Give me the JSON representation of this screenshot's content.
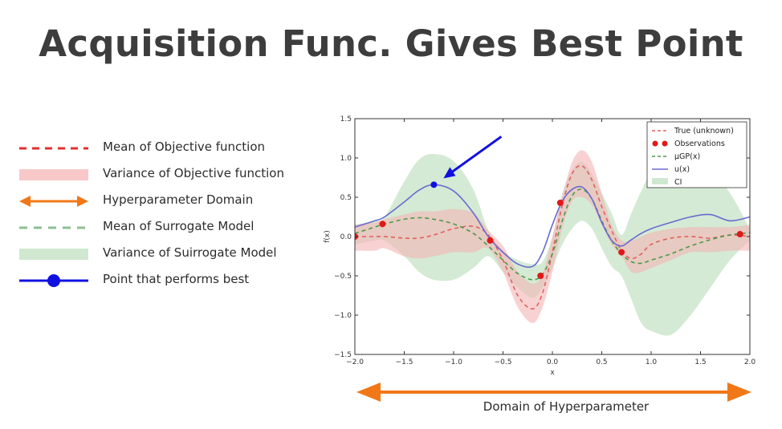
{
  "slide": {
    "title": "Acquisition Func. Gives Best Point",
    "domain_label": "Domain of Hyperparameter"
  },
  "legend_left": [
    {
      "label": "Mean of Objective function",
      "icon": "red-dashed-line",
      "color": "#e03030"
    },
    {
      "label": "Variance of Objective function",
      "icon": "pink-band",
      "color": "#f8c8c8"
    },
    {
      "label": "Hyperparameter Domain",
      "icon": "orange-double-arrow",
      "color": "#f07818"
    },
    {
      "label": "Mean of Surrogate Model",
      "icon": "green-dashed-line",
      "color": "#8cbf92"
    },
    {
      "label": "Variance of Suirrogate Model",
      "icon": "green-band",
      "color": "#cfe8cf"
    },
    {
      "label": "Point that performs best",
      "icon": "blue-line-with-dot",
      "color": "#1010e0"
    }
  ],
  "chart_data": {
    "type": "line",
    "xlabel": "x",
    "ylabel": "f(x)",
    "xlim": [
      -2.0,
      2.0
    ],
    "ylim": [
      -1.5,
      1.5
    ],
    "x_ticks": [
      "−2.0",
      "−1.5",
      "−1.0",
      "−0.5",
      "0.0",
      "0.5",
      "1.0",
      "1.5",
      "2.0"
    ],
    "y_ticks": [
      "1.5",
      "1.0",
      "0.5",
      "0.0",
      "−0.5",
      "−1.0",
      "−1.5"
    ],
    "legend": {
      "position": "top-right",
      "entries": [
        "True (unknown)",
        "Observations",
        "μGP(x)",
        "u(x)",
        "CI"
      ]
    },
    "colors": {
      "true": "#e06060",
      "obs": "#e01818",
      "mu": "#4a9a4a",
      "u": "#6a6ad0",
      "ci": "#cfe8cf",
      "true_band": "#f4b4b4",
      "best": "#1010e0"
    },
    "x": [
      -2.0,
      -1.8,
      -1.7,
      -1.5,
      -1.35,
      -1.2,
      -1.0,
      -0.8,
      -0.65,
      -0.5,
      -0.35,
      -0.2,
      -0.1,
      0.0,
      0.1,
      0.2,
      0.3,
      0.4,
      0.5,
      0.6,
      0.7,
      0.8,
      0.9,
      1.0,
      1.2,
      1.4,
      1.6,
      1.8,
      2.0
    ],
    "series": [
      {
        "name": "True (unknown)",
        "values": [
          0.0,
          0.0,
          0.0,
          -0.02,
          -0.02,
          0.02,
          0.1,
          0.13,
          0.02,
          -0.3,
          -0.75,
          -0.92,
          -0.72,
          -0.2,
          0.4,
          0.8,
          0.9,
          0.72,
          0.38,
          0.08,
          -0.18,
          -0.28,
          -0.22,
          -0.1,
          -0.02,
          0.0,
          -0.02,
          0.02,
          0.0
        ]
      },
      {
        "name": "μGP(x)",
        "values": [
          0.04,
          0.12,
          0.16,
          0.22,
          0.24,
          0.22,
          0.16,
          0.04,
          -0.12,
          -0.3,
          -0.47,
          -0.55,
          -0.48,
          -0.22,
          0.2,
          0.52,
          0.6,
          0.48,
          0.2,
          -0.05,
          -0.22,
          -0.32,
          -0.34,
          -0.3,
          -0.22,
          -0.12,
          -0.04,
          0.02,
          0.05
        ]
      },
      {
        "name": "u(x)",
        "values": [
          0.12,
          0.2,
          0.25,
          0.44,
          0.59,
          0.66,
          0.58,
          0.3,
          0.0,
          -0.2,
          -0.35,
          -0.38,
          -0.2,
          0.15,
          0.45,
          0.6,
          0.63,
          0.48,
          0.18,
          -0.05,
          -0.12,
          -0.04,
          0.04,
          0.1,
          0.18,
          0.25,
          0.28,
          0.2,
          0.25
        ]
      }
    ],
    "ci_band": {
      "upper": [
        0.15,
        0.2,
        0.25,
        0.7,
        0.98,
        1.05,
        0.96,
        0.6,
        0.08,
        -0.18,
        -0.3,
        -0.35,
        -0.32,
        0.0,
        0.55,
        0.85,
        0.95,
        0.8,
        0.55,
        0.3,
        0.02,
        0.3,
        0.58,
        0.8,
        0.95,
        0.95,
        0.85,
        0.55,
        0.1
      ],
      "lower": [
        -0.1,
        -0.05,
        -0.05,
        -0.25,
        -0.45,
        -0.55,
        -0.55,
        -0.4,
        -0.25,
        -0.45,
        -0.65,
        -0.78,
        -0.65,
        -0.4,
        -0.1,
        0.1,
        0.2,
        0.1,
        -0.15,
        -0.38,
        -0.5,
        -0.8,
        -1.1,
        -1.2,
        -1.25,
        -1.0,
        -0.65,
        -0.3,
        -0.05
      ]
    },
    "true_band": {
      "upper": [
        0.15,
        0.18,
        0.22,
        0.28,
        0.32,
        0.32,
        0.35,
        0.3,
        0.08,
        -0.12,
        -0.45,
        -0.6,
        -0.48,
        0.0,
        0.5,
        0.95,
        1.1,
        0.95,
        0.55,
        0.15,
        -0.05,
        -0.05,
        0.0,
        0.05,
        0.1,
        0.12,
        0.12,
        0.12,
        0.15
      ],
      "lower": [
        -0.18,
        -0.18,
        -0.15,
        -0.25,
        -0.28,
        -0.25,
        -0.2,
        -0.2,
        -0.15,
        -0.45,
        -0.9,
        -1.1,
        -0.9,
        -0.45,
        0.1,
        0.45,
        0.5,
        0.4,
        0.15,
        -0.1,
        -0.25,
        -0.45,
        -0.45,
        -0.4,
        -0.3,
        -0.2,
        -0.2,
        -0.18,
        -0.18
      ]
    },
    "observations": [
      {
        "x": -2.0,
        "y": 0.0
      },
      {
        "x": -1.72,
        "y": 0.16
      },
      {
        "x": -0.63,
        "y": -0.05
      },
      {
        "x": -0.12,
        "y": -0.5
      },
      {
        "x": 0.08,
        "y": 0.43
      },
      {
        "x": 0.7,
        "y": -0.2
      },
      {
        "x": 1.9,
        "y": 0.03
      }
    ],
    "best_point": {
      "x": -1.2,
      "y": 0.66
    }
  }
}
